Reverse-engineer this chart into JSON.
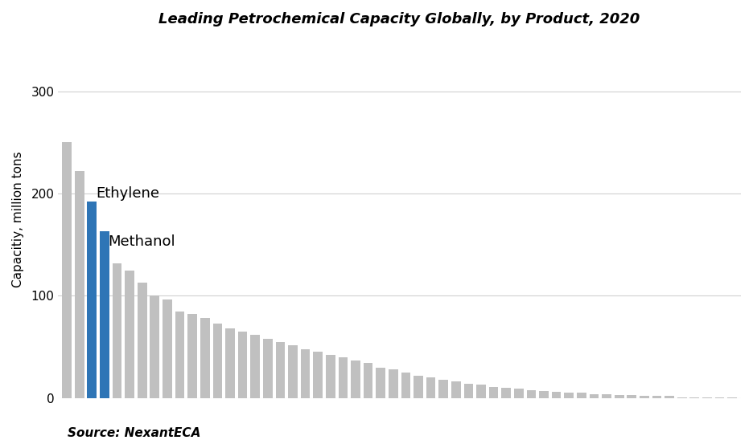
{
  "title": "Leading Petrochemical Capacity Globally, by Product, 2020",
  "ylabel": "Capacitiy, million tons",
  "source": "Source: NexantECA",
  "ylim": [
    0,
    350
  ],
  "yticks": [
    0,
    100,
    200,
    300
  ],
  "values": [
    250,
    222,
    192,
    163,
    132,
    125,
    113,
    100,
    96,
    85,
    82,
    78,
    73,
    68,
    65,
    62,
    58,
    55,
    52,
    48,
    45,
    42,
    40,
    37,
    34,
    30,
    28,
    25,
    22,
    20,
    18,
    16,
    14,
    13,
    11,
    10,
    9,
    8,
    7,
    6,
    5,
    5,
    4,
    4,
    3,
    3,
    2,
    2,
    2,
    1,
    1,
    1,
    1,
    1
  ],
  "blue_indices": [
    2,
    3
  ],
  "bar_color_default": "#c0c0c0",
  "bar_color_highlight": "#2E75B6",
  "annotation_ethylene": "Ethylene",
  "annotation_methanol": "Methanol",
  "title_fontsize": 13,
  "ylabel_fontsize": 11,
  "source_fontsize": 11,
  "background_color": "#ffffff",
  "grid_color": "#d0d0d0",
  "bar_width": 0.75,
  "annotation_fontsize": 13
}
